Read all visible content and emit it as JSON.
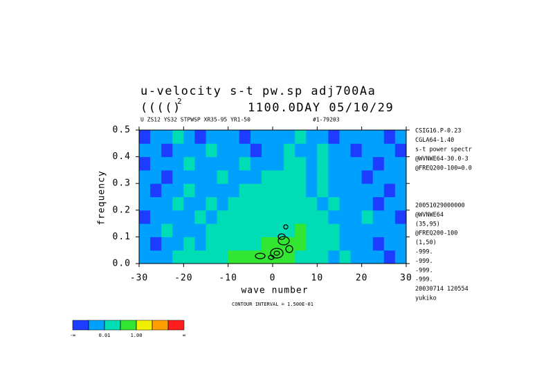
{
  "chart_data": {
    "type": "filled-contour",
    "title": "u-velocity s-t pw.sp  adj700Aa",
    "subtitle": "(((()",
    "subtitle_exponent": "2",
    "subtitle_right": "1100.0DAY 05/10/29",
    "info_left": "U ZS12 YS32 STPWSP XR35-95 YR1-50",
    "info_right": "#1-79203",
    "xlabel": "wave number",
    "ylabel": "frequency",
    "footer": "CONTOUR INTERVAL = 1.500E-01",
    "notes_top": [
      "CSIG16.P-0.23",
      "CGLA64-1.40",
      "s-t power spectr",
      "@WVNWE64-30.0-3",
      "@FREQ200-100=0.0"
    ],
    "notes_bottom": [
      "20051029000000",
      "@WVNWE64",
      "(35,95)",
      "@FREQ200-100",
      "(1,50)",
      "-999.",
      "-999.",
      "-999.",
      "-999.",
      "20030714 120554",
      "yukiko"
    ],
    "xlim": [
      -30,
      30
    ],
    "ylim": [
      0,
      0.5
    ],
    "xticks": [
      -30,
      -20,
      -10,
      0,
      10,
      20,
      30
    ],
    "yticks": [
      {
        "value": 0,
        "label": "0.0"
      },
      0.1,
      0.2,
      0.3,
      0.4,
      0.5
    ],
    "x": [
      -28.75,
      -26.25,
      -23.75,
      -21.25,
      -18.75,
      -16.25,
      -13.75,
      -11.25,
      -8.75,
      -6.25,
      -3.75,
      -1.25,
      1.25,
      3.75,
      6.25,
      8.75,
      11.25,
      13.75,
      16.25,
      18.75,
      21.25,
      23.75,
      26.25,
      28.75
    ],
    "y": [
      0.025,
      0.075,
      0.125,
      0.175,
      0.225,
      0.275,
      0.325,
      0.375,
      0.425,
      0.475
    ],
    "z": [
      [
        0.005,
        0.005,
        0.005,
        0.05,
        0.05,
        0.05,
        0.05,
        0.05,
        0.5,
        0.5,
        0.5,
        0.5,
        0.5,
        0.5,
        0.05,
        0.05,
        0.05,
        0.005,
        0.05,
        0.005,
        0.005,
        0.005,
        0.0005,
        0.005
      ],
      [
        0.005,
        0.0005,
        0.005,
        0.005,
        0.05,
        0.005,
        0.05,
        0.05,
        0.05,
        0.05,
        0.05,
        0.5,
        0.5,
        0.5,
        0.5,
        0.05,
        0.05,
        0.05,
        0.005,
        0.005,
        0.005,
        0.0005,
        0.005,
        0.005
      ],
      [
        0.005,
        0.005,
        0.05,
        0.005,
        0.005,
        0.005,
        0.05,
        0.05,
        0.05,
        0.05,
        0.05,
        0.05,
        0.05,
        0.05,
        0.5,
        0.05,
        0.05,
        0.05,
        0.005,
        0.005,
        0.005,
        0.005,
        0.005,
        0.005
      ],
      [
        0.0005,
        0.005,
        0.005,
        0.005,
        0.005,
        0.05,
        0.005,
        0.05,
        0.05,
        0.05,
        0.05,
        0.05,
        0.05,
        0.05,
        0.05,
        0.05,
        0.05,
        0.005,
        0.005,
        0.005,
        0.05,
        0.005,
        0.005,
        0.0005
      ],
      [
        0.005,
        0.005,
        0.005,
        0.05,
        0.005,
        0.005,
        0.05,
        0.005,
        0.05,
        0.05,
        0.05,
        0.05,
        0.05,
        0.05,
        0.05,
        0.05,
        0.005,
        0.05,
        0.005,
        0.005,
        0.005,
        0.0005,
        0.005,
        0.005
      ],
      [
        0.005,
        0.0005,
        0.005,
        0.005,
        0.05,
        0.005,
        0.005,
        0.005,
        0.005,
        0.05,
        0.05,
        0.05,
        0.05,
        0.05,
        0.05,
        0.005,
        0.05,
        0.005,
        0.005,
        0.005,
        0.005,
        0.005,
        0.0005,
        0.005
      ],
      [
        0.005,
        0.005,
        0.0005,
        0.005,
        0.005,
        0.005,
        0.005,
        0.05,
        0.005,
        0.005,
        0.005,
        0.05,
        0.05,
        0.05,
        0.05,
        0.005,
        0.05,
        0.005,
        0.005,
        0.005,
        0.0005,
        0.005,
        0.005,
        0.005
      ],
      [
        0.0005,
        0.005,
        0.005,
        0.005,
        0.05,
        0.005,
        0.005,
        0.005,
        0.005,
        0.05,
        0.005,
        0.005,
        0.005,
        0.05,
        0.05,
        0.005,
        0.05,
        0.005,
        0.005,
        0.005,
        0.005,
        0.0005,
        0.005,
        0.005
      ],
      [
        0.005,
        0.005,
        0.0005,
        0.005,
        0.005,
        0.005,
        0.05,
        0.005,
        0.005,
        0.005,
        0.0005,
        0.005,
        0.005,
        0.05,
        0.005,
        0.005,
        0.05,
        0.005,
        0.005,
        0.0005,
        0.005,
        0.005,
        0.005,
        0.0005
      ],
      [
        0.0005,
        0.005,
        0.005,
        0.05,
        0.005,
        0.0005,
        0.005,
        0.005,
        0.005,
        0.0005,
        0.005,
        0.005,
        0.005,
        0.005,
        0.05,
        0.005,
        0.005,
        0.0005,
        0.005,
        0.005,
        0.005,
        0.005,
        0.0005,
        0.005
      ]
    ],
    "colorbar": {
      "colors": [
        "#1e3cff",
        "#00a0ff",
        "#00dcb4",
        "#32e632",
        "#f0f000",
        "#ffa000",
        "#ff1e1e"
      ],
      "levels": [
        0.001,
        0.01,
        0.1,
        1,
        10,
        100
      ],
      "labels": [
        "-∞",
        "0.01",
        "1.00",
        "∞"
      ]
    }
  }
}
